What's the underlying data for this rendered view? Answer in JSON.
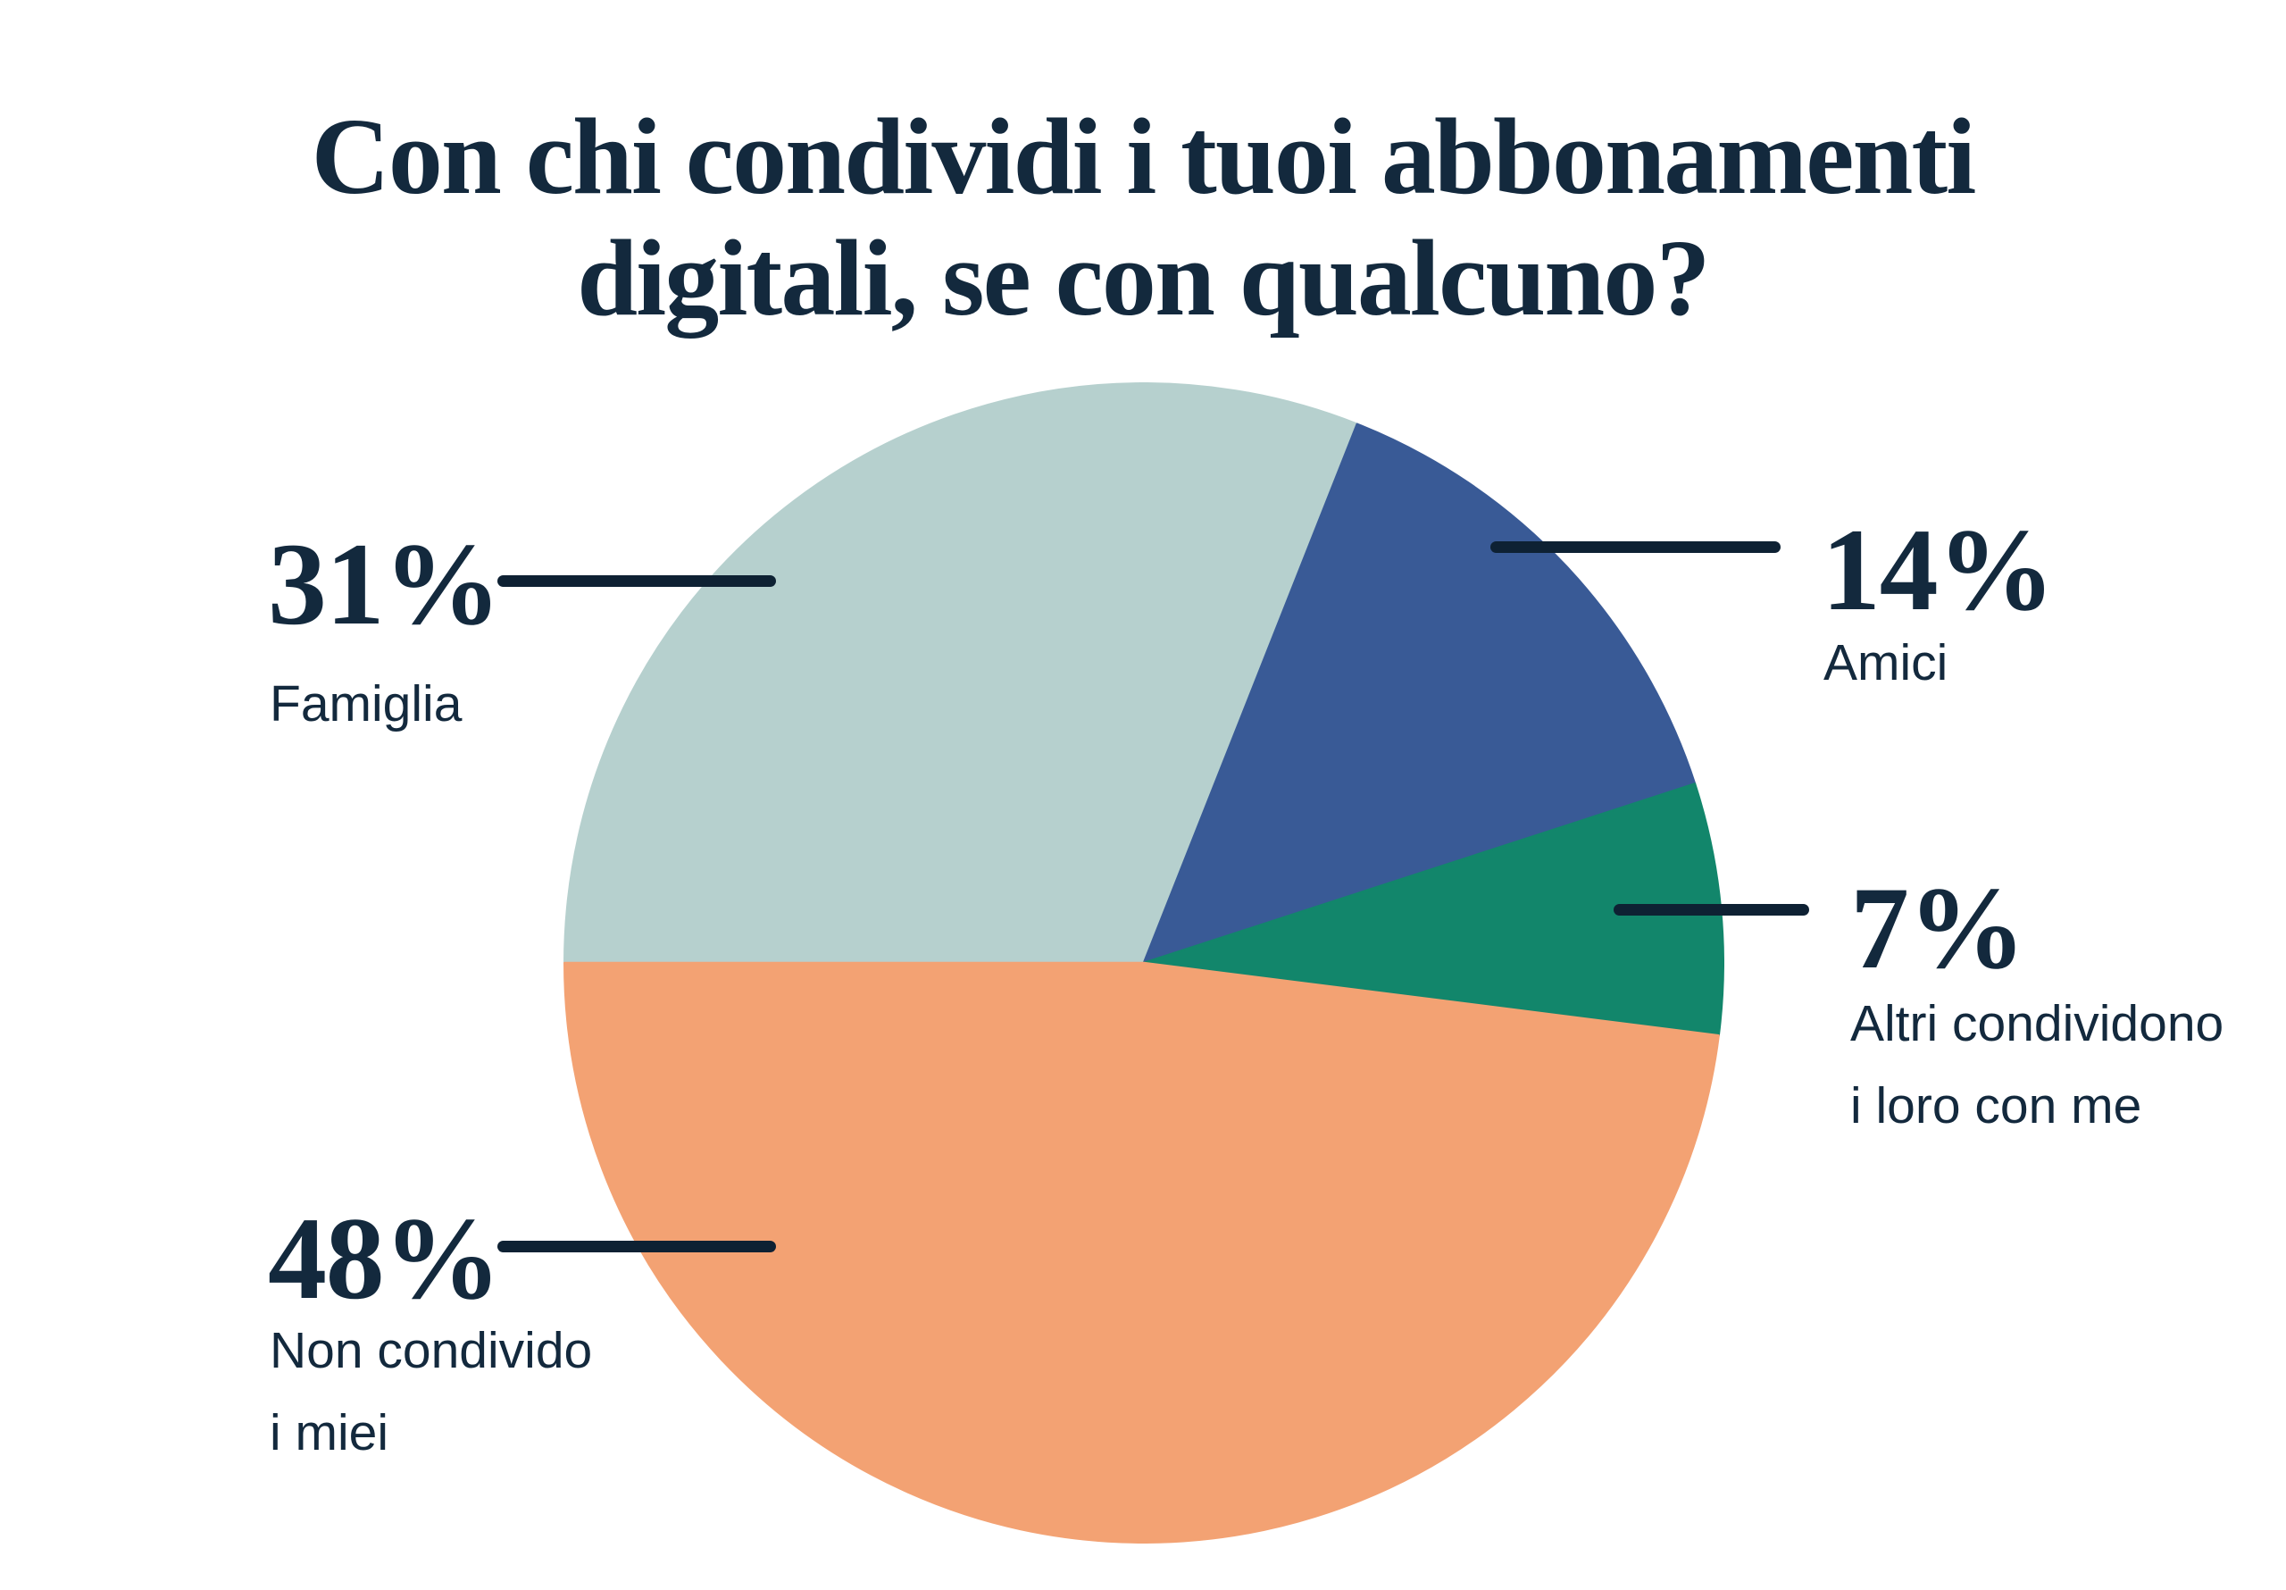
{
  "page": {
    "background": "#ffffff"
  },
  "colors": {
    "text": "#13293d",
    "leader_line": "#0e2133",
    "slice_famiglia": "#b6d0ce",
    "slice_amici": "#395a96",
    "slice_altri": "#12866b",
    "slice_non_condivido": "#f3a273"
  },
  "chart_data": {
    "type": "pie",
    "title": "Con chi condividi i tuoi abbonamenti digitali, se con qualcuno?",
    "title_lines": [
      "Con chi condividi i tuoi abbonamenti",
      "digitali, se con qualcuno?"
    ],
    "start_angle_deg": 270,
    "direction": "clockwise",
    "legend": "none",
    "labels_position": "outside-with-leader-lines",
    "slices": [
      {
        "id": "famiglia",
        "label": "Famiglia",
        "value_pct": 31,
        "color": "#b6d0ce"
      },
      {
        "id": "amici",
        "label": "Amici",
        "value_pct": 14,
        "color": "#395a96"
      },
      {
        "id": "altri-condividono",
        "label": "Altri condividono i loro con me",
        "value_pct": 7,
        "color": "#12866b"
      },
      {
        "id": "non-condivido",
        "label": "Non condivido i miei",
        "value_pct": 48,
        "color": "#f3a273"
      }
    ]
  },
  "callouts": {
    "famiglia": {
      "pct": "31%",
      "lines": [
        "Famiglia"
      ]
    },
    "amici": {
      "pct": "14%",
      "lines": [
        "Amici"
      ]
    },
    "altri": {
      "pct": "7%",
      "lines": [
        "Altri condividono",
        "i loro con me"
      ]
    },
    "non_condivido": {
      "pct": "48%",
      "lines": [
        "Non condivido",
        "i miei"
      ]
    }
  }
}
